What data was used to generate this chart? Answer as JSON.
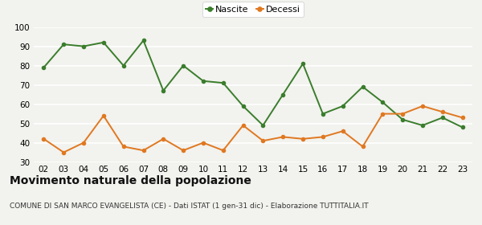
{
  "years": [
    "02",
    "03",
    "04",
    "05",
    "06",
    "07",
    "08",
    "09",
    "10",
    "11",
    "12",
    "13",
    "14",
    "15",
    "16",
    "17",
    "18",
    "19",
    "20",
    "21",
    "22",
    "23"
  ],
  "nascite": [
    79,
    91,
    90,
    92,
    80,
    93,
    67,
    80,
    72,
    71,
    59,
    49,
    65,
    81,
    55,
    59,
    69,
    61,
    52,
    49,
    53,
    48
  ],
  "decessi": [
    42,
    35,
    40,
    54,
    38,
    36,
    42,
    36,
    40,
    36,
    49,
    41,
    43,
    42,
    43,
    46,
    38,
    55,
    55,
    59,
    56,
    53
  ],
  "nascite_color": "#3a7d2c",
  "decessi_color": "#e07820",
  "bg_color": "#f2f2ee",
  "grid_color": "#ffffff",
  "ylim": [
    30,
    100
  ],
  "yticks": [
    30,
    40,
    50,
    60,
    70,
    80,
    90,
    100
  ],
  "title": "Movimento naturale della popolazione",
  "subtitle": "COMUNE DI SAN MARCO EVANGELISTA (CE) - Dati ISTAT (1 gen-31 dic) - Elaborazione TUTTITALIA.IT",
  "legend_nascite": "Nascite",
  "legend_decessi": "Decessi",
  "title_fontsize": 10,
  "subtitle_fontsize": 6.5,
  "marker_size": 4,
  "line_width": 1.4
}
